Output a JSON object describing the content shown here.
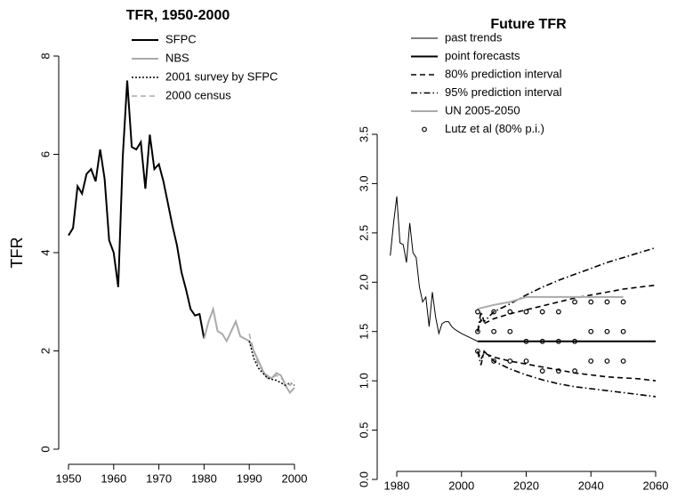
{
  "chart_data": [
    {
      "type": "line",
      "title": "TFR, 1950-2000",
      "y_label": "TFR",
      "xlim": [
        1950,
        2000
      ],
      "ylim": [
        0,
        8
      ],
      "xticks": [
        1950,
        1960,
        1970,
        1980,
        1990,
        2000
      ],
      "yticks": [
        0,
        2,
        4,
        6,
        8
      ],
      "series": [
        {
          "name": "SFPC",
          "color": "#000000",
          "dash": "solid",
          "width": 2,
          "x": [
            1950,
            1951,
            1952,
            1953,
            1954,
            1955,
            1956,
            1957,
            1958,
            1959,
            1960,
            1961,
            1962,
            1963,
            1964,
            1965,
            1966,
            1967,
            1968,
            1969,
            1970,
            1971,
            1972,
            1973,
            1974,
            1975,
            1976,
            1977,
            1978,
            1979,
            1980
          ],
          "values": [
            4.35,
            4.5,
            5.35,
            5.2,
            5.6,
            5.7,
            5.45,
            6.1,
            5.5,
            4.25,
            4.0,
            3.3,
            5.95,
            7.5,
            6.15,
            6.1,
            6.25,
            5.3,
            6.4,
            5.7,
            5.8,
            5.45,
            5.0,
            4.55,
            4.15,
            3.6,
            3.25,
            2.85,
            2.72,
            2.75,
            2.25
          ]
        },
        {
          "name": "NBS",
          "color": "#aaaaaa",
          "dash": "solid",
          "width": 2,
          "x": [
            1980,
            1981,
            1982,
            1983,
            1984,
            1985,
            1986,
            1987,
            1988,
            1989,
            1990,
            1991,
            1992,
            1993,
            1994,
            1995,
            1996,
            1997,
            1998,
            1999,
            2000
          ],
          "values": [
            2.25,
            2.6,
            2.85,
            2.4,
            2.35,
            2.2,
            2.4,
            2.6,
            2.3,
            2.25,
            2.2,
            2.0,
            1.8,
            1.6,
            1.45,
            1.45,
            1.55,
            1.5,
            1.3,
            1.15,
            1.25
          ]
        },
        {
          "name": "2001 survey by SFPC",
          "color": "#000000",
          "dash": "dotted",
          "width": 1.5,
          "x": [
            1990,
            1991,
            1992,
            1993,
            1994,
            1995,
            1996,
            1997,
            1998,
            1999,
            2000
          ],
          "values": [
            2.2,
            1.85,
            1.65,
            1.55,
            1.45,
            1.42,
            1.4,
            1.35,
            1.3,
            1.35,
            1.3
          ]
        },
        {
          "name": "2000 census",
          "color": "#aaaaaa",
          "dash": "dashed",
          "width": 1.5,
          "x": [
            1990,
            1991,
            1992,
            1993,
            1994,
            1995,
            1996,
            1997,
            1998,
            1999,
            2000
          ],
          "values": [
            2.35,
            2.0,
            1.7,
            1.6,
            1.5,
            1.45,
            1.5,
            1.45,
            1.35,
            1.3,
            1.4
          ]
        }
      ]
    },
    {
      "type": "line",
      "title": "Future TFR",
      "xlim": [
        1980,
        2060
      ],
      "ylim": [
        0,
        3.5
      ],
      "xticks": [
        1980,
        2000,
        2020,
        2040,
        2060
      ],
      "yticks": [
        {
          "value": 0,
          "label": "0.0"
        },
        0.5,
        {
          "value": 1,
          "label": "1.0"
        },
        1.5,
        {
          "value": 2,
          "label": "2.0"
        },
        2.5,
        {
          "value": 3,
          "label": "3.0"
        },
        3.5
      ],
      "series": [
        {
          "name": "past trends",
          "color": "#000000",
          "dash": "solid",
          "width": 1,
          "x": [
            1978,
            1979,
            1980,
            1981,
            1982,
            1983,
            1984,
            1985,
            1986,
            1987,
            1988,
            1989,
            1990,
            1991,
            1992,
            1993,
            1994,
            1995,
            1996,
            1997,
            1998,
            1999,
            2000,
            2005
          ],
          "values": [
            2.27,
            2.6,
            2.87,
            2.4,
            2.38,
            2.2,
            2.6,
            2.3,
            2.25,
            1.95,
            1.8,
            1.85,
            1.55,
            1.9,
            1.65,
            1.48,
            1.58,
            1.6,
            1.6,
            1.55,
            1.52,
            1.5,
            1.48,
            1.4
          ]
        },
        {
          "name": "point forecasts",
          "color": "#000000",
          "dash": "solid",
          "width": 2,
          "x": [
            2005,
            2060
          ],
          "values": [
            1.4,
            1.4
          ]
        },
        {
          "name": "80% prediction interval",
          "color": "#000000",
          "dash": "dashed",
          "width": 1.6,
          "x": [
            2005,
            2006,
            2007,
            2010,
            2015,
            2020,
            2025,
            2030,
            2035,
            2040,
            2045,
            2050,
            2055,
            2060
          ],
          "values": [
            1.5,
            1.62,
            1.58,
            1.63,
            1.68,
            1.72,
            1.76,
            1.8,
            1.84,
            1.87,
            1.9,
            1.93,
            1.95,
            1.97
          ]
        },
        {
          "name": "80% prediction interval",
          "color": "#000000",
          "dash": "dashed",
          "width": 1.6,
          "legend": false,
          "x": [
            2005,
            2006,
            2007,
            2010,
            2015,
            2020,
            2025,
            2030,
            2035,
            2040,
            2045,
            2050,
            2055,
            2060
          ],
          "values": [
            1.3,
            1.22,
            1.28,
            1.24,
            1.2,
            1.17,
            1.14,
            1.11,
            1.08,
            1.06,
            1.04,
            1.03,
            1.02,
            1.0
          ]
        },
        {
          "name": "95% prediction interval",
          "color": "#000000",
          "dash": "dotdash",
          "width": 1.6,
          "x": [
            2005,
            2006,
            2007,
            2010,
            2015,
            2020,
            2025,
            2030,
            2035,
            2040,
            2045,
            2050,
            2055,
            2060
          ],
          "values": [
            1.5,
            1.7,
            1.6,
            1.7,
            1.78,
            1.87,
            1.95,
            2.02,
            2.08,
            2.14,
            2.2,
            2.25,
            2.3,
            2.35
          ]
        },
        {
          "name": "95% prediction interval",
          "color": "#000000",
          "dash": "dotdash",
          "width": 1.6,
          "legend": false,
          "x": [
            2005,
            2006,
            2007,
            2010,
            2015,
            2020,
            2025,
            2030,
            2035,
            2040,
            2045,
            2050,
            2055,
            2060
          ],
          "values": [
            1.3,
            1.16,
            1.3,
            1.2,
            1.12,
            1.06,
            1.01,
            0.97,
            0.94,
            0.92,
            0.9,
            0.88,
            0.86,
            0.84
          ]
        },
        {
          "name": "UN 2005-2050",
          "color": "#aaaaaa",
          "dash": "solid",
          "width": 2,
          "x": [
            2005,
            2010,
            2015,
            2020,
            2025,
            2030,
            2035,
            2040,
            2045,
            2050
          ],
          "values": [
            1.73,
            1.77,
            1.8,
            1.85,
            1.85,
            1.85,
            1.85,
            1.85,
            1.85,
            1.85
          ]
        },
        {
          "name": "Lutz et al (80% p.i.)",
          "color": "#000000",
          "marker": "circle",
          "x": [
            2005,
            2010,
            2015,
            2020,
            2025,
            2030,
            2035,
            2040,
            2045,
            2050,
            2005,
            2010,
            2015,
            2020,
            2025,
            2030,
            2035,
            2040,
            2045,
            2050,
            2005,
            2010,
            2015,
            2020,
            2025,
            2030,
            2035,
            2040,
            2045,
            2050
          ],
          "values": [
            1.7,
            1.7,
            1.7,
            1.7,
            1.7,
            1.7,
            1.8,
            1.8,
            1.8,
            1.8,
            1.5,
            1.5,
            1.5,
            1.4,
            1.4,
            1.4,
            1.4,
            1.5,
            1.5,
            1.5,
            1.3,
            1.2,
            1.2,
            1.2,
            1.1,
            1.1,
            1.1,
            1.2,
            1.2,
            1.2
          ]
        }
      ]
    }
  ]
}
